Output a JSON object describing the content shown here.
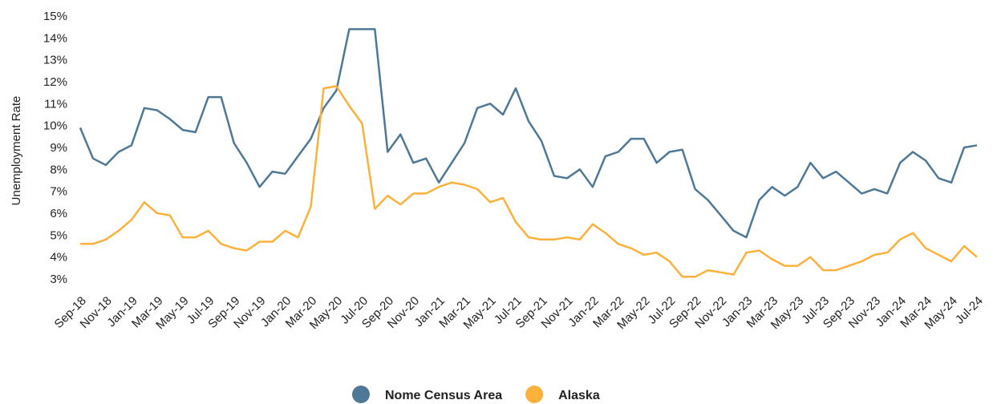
{
  "chart_data": {
    "type": "line",
    "y_label": "Unemployment Rate",
    "categories": [
      "Sep-18",
      null,
      "Nov-18",
      null,
      "Jan-19",
      null,
      "Mar-19",
      null,
      "May-19",
      null,
      "Jul-19",
      null,
      "Sep-19",
      null,
      "Nov-19",
      null,
      "Jan-20",
      null,
      "Mar-20",
      null,
      "May-20",
      null,
      "Jul-20",
      null,
      "Sep-20",
      null,
      "Nov-20",
      null,
      "Jan-21",
      null,
      "Mar-21",
      null,
      "May-21",
      null,
      "Jul-21",
      null,
      "Sep-21",
      null,
      "Nov-21",
      null,
      "Jan-22",
      null,
      "Mar-22",
      null,
      "May-22",
      null,
      "Jul-22",
      null,
      "Sep-22",
      null,
      "Nov-22",
      null,
      "Jan-23",
      null,
      "Mar-23",
      null,
      "May-23",
      null,
      "Jul-23",
      null,
      "Sep-23",
      null,
      "Nov-23",
      null,
      "Jan-24",
      null,
      "Mar-24",
      null,
      "May-24",
      null,
      "Jul-24"
    ],
    "series": [
      {
        "name": "Nome Census Area",
        "color": "#4e7896",
        "values": [
          9.9,
          8.5,
          8.2,
          8.8,
          9.1,
          10.8,
          10.7,
          10.3,
          9.8,
          9.7,
          11.3,
          11.3,
          9.2,
          8.3,
          7.2,
          7.9,
          7.8,
          8.6,
          9.4,
          10.8,
          11.6,
          14.4,
          14.4,
          14.4,
          8.8,
          9.6,
          8.3,
          8.5,
          7.4,
          8.3,
          9.2,
          10.8,
          11.0,
          10.5,
          11.7,
          10.2,
          9.3,
          7.7,
          7.6,
          8.0,
          7.2,
          8.6,
          8.8,
          9.4,
          9.4,
          8.3,
          8.8,
          8.9,
          7.1,
          6.6,
          5.9,
          5.2,
          4.9,
          6.6,
          7.2,
          6.8,
          7.2,
          8.3,
          7.6,
          7.9,
          7.4,
          6.9,
          7.1,
          6.9,
          8.3,
          8.8,
          8.4,
          7.6,
          7.4,
          9.0,
          9.1
        ]
      },
      {
        "name": "Alaska",
        "color": "#fbb13c",
        "values": [
          4.6,
          4.6,
          4.8,
          5.2,
          5.7,
          6.5,
          6.0,
          5.9,
          4.9,
          4.9,
          5.2,
          4.6,
          4.4,
          4.3,
          4.7,
          4.7,
          5.2,
          4.9,
          6.3,
          11.7,
          11.8,
          10.9,
          10.1,
          6.2,
          6.8,
          6.4,
          6.9,
          6.9,
          7.2,
          7.4,
          7.3,
          7.1,
          6.5,
          6.7,
          5.6,
          4.9,
          4.8,
          4.8,
          4.9,
          4.8,
          5.5,
          5.1,
          4.6,
          4.4,
          4.1,
          4.2,
          3.8,
          3.1,
          3.1,
          3.4,
          3.3,
          3.2,
          4.2,
          4.3,
          3.9,
          3.6,
          3.6,
          4.0,
          3.4,
          3.4,
          3.6,
          3.8,
          4.1,
          4.2,
          4.8,
          5.1,
          4.4,
          4.1,
          3.8,
          4.5,
          4.0
        ]
      }
    ],
    "ylim": [
      3,
      15
    ],
    "yticks": [
      {
        "value": 3,
        "label": "3%"
      },
      {
        "value": 4,
        "label": "4%"
      },
      {
        "value": 5,
        "label": "5%"
      },
      {
        "value": 6,
        "label": "6%"
      },
      {
        "value": 7,
        "label": "7%"
      },
      {
        "value": 8,
        "label": "8%"
      },
      {
        "value": 9,
        "label": "9%"
      },
      {
        "value": 10,
        "label": "10%"
      },
      {
        "value": 11,
        "label": "11%"
      },
      {
        "value": 12,
        "label": "12%"
      },
      {
        "value": 13,
        "label": "13%"
      },
      {
        "value": 14,
        "label": "14%"
      },
      {
        "value": 15,
        "label": "15%"
      }
    ],
    "legend": "bottom"
  }
}
